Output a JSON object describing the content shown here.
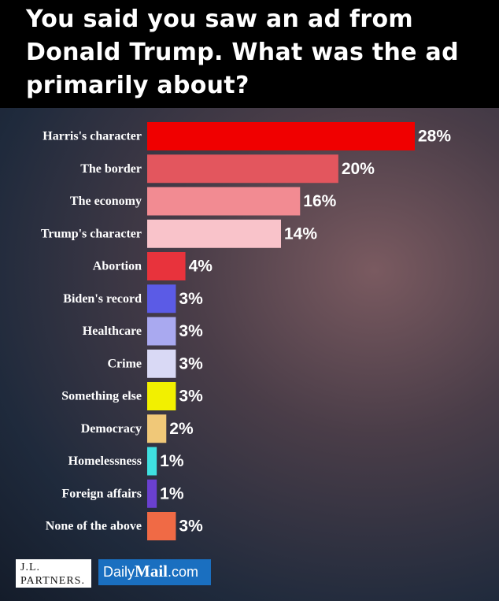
{
  "chart_data": {
    "type": "bar",
    "orientation": "horizontal",
    "title": "You said you saw an ad from Donald Trump. What was the ad primarily about?",
    "categories": [
      "Harris's character",
      "The border",
      "The economy",
      "Trump's character",
      "Abortion",
      "Biden's record",
      "Healthcare",
      "Crime",
      "Something else",
      "Democracy",
      "Homelessness",
      "Foreign affairs",
      "None of the above"
    ],
    "values": [
      28,
      20,
      16,
      14,
      4,
      3,
      3,
      3,
      3,
      2,
      1,
      1,
      3
    ],
    "value_labels": [
      "28%",
      "20%",
      "16%",
      "14%",
      "4%",
      "3%",
      "3%",
      "3%",
      "3%",
      "2%",
      "1%",
      "1%",
      "3%"
    ],
    "colors": [
      "#f00000",
      "#e3565e",
      "#f28b92",
      "#f9c3ca",
      "#e8333c",
      "#5b5be6",
      "#a9a9f0",
      "#d9d9f5",
      "#f2f000",
      "#f0c878",
      "#3fe0e0",
      "#6a40d0",
      "#f06a45"
    ],
    "source_logo": [
      "J.L.",
      "PARTNERS."
    ],
    "publisher_logo": [
      "Daily",
      "Mail",
      ".com"
    ]
  }
}
